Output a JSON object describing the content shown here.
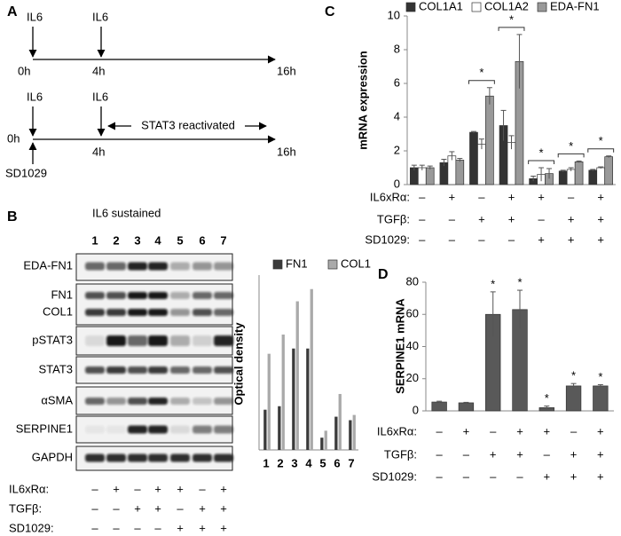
{
  "panel_a": {
    "label": "A",
    "timeline_1": {
      "treatments": [
        "IL6",
        "IL6"
      ],
      "times": [
        "0h",
        "4h",
        "16h"
      ]
    },
    "timeline_2": {
      "treatments": [
        "IL6",
        "IL6"
      ],
      "note": "STAT3 reactivated",
      "inhibitor": "SD1029",
      "times": [
        "0h",
        "4h",
        "16h"
      ]
    }
  },
  "panel_b": {
    "label": "B",
    "title": "IL6 sustained",
    "lanes": [
      "1",
      "2",
      "3",
      "4",
      "5",
      "6",
      "7"
    ],
    "blots": [
      "EDA-FN1",
      "FN1",
      "COL1",
      "pSTAT3",
      "STAT3",
      "αSMA",
      "SERPINE1",
      "GAPDH"
    ],
    "conditions": [
      {
        "label": "IL6xRα:",
        "signs": [
          "–",
          "+",
          "–",
          "+",
          "+",
          "–",
          "+"
        ]
      },
      {
        "label": "TGFβ:",
        "signs": [
          "–",
          "–",
          "+",
          "+",
          "–",
          "+",
          "+"
        ]
      },
      {
        "label": "SD1029:",
        "signs": [
          "–",
          "–",
          "–",
          "–",
          "+",
          "+",
          "+"
        ]
      }
    ]
  },
  "chart_data": [
    {
      "type": "bar",
      "ylabel": "Optical density",
      "categories": [
        "1",
        "2",
        "3",
        "4",
        "5",
        "6",
        "7"
      ],
      "series": [
        {
          "name": "FN1",
          "color": "#3a3a3a",
          "values": [
            23,
            25,
            58,
            58,
            7,
            19,
            17
          ]
        },
        {
          "name": "COL1",
          "color": "#aaaaaa",
          "values": [
            55,
            66,
            85,
            92,
            11,
            32,
            20
          ]
        }
      ],
      "ylim": [
        0,
        100
      ]
    },
    {
      "type": "bar",
      "panel_label": "C",
      "ylabel": "mRNA expression",
      "series": [
        {
          "name": "COL1A1",
          "color": "#333333",
          "values": [
            1.0,
            1.3,
            3.1,
            3.5,
            0.35,
            0.8,
            0.85
          ],
          "errors": [
            0.15,
            0.2,
            0.05,
            0.9,
            0.15,
            0.05,
            0.05
          ]
        },
        {
          "name": "COL1A2",
          "color": "#ffffff",
          "values": [
            1.0,
            1.7,
            2.4,
            2.5,
            0.6,
            0.9,
            1.0
          ],
          "errors": [
            0.15,
            0.25,
            0.3,
            0.4,
            0.4,
            0.1,
            0.05
          ]
        },
        {
          "name": "EDA-FN1",
          "color": "#999999",
          "values": [
            1.0,
            1.45,
            5.25,
            7.3,
            0.65,
            1.35,
            1.65
          ],
          "errors": [
            0.1,
            0.1,
            0.5,
            1.6,
            0.3,
            0.05,
            0.05
          ]
        }
      ],
      "significance": [
        null,
        null,
        "*",
        "*",
        "*",
        "*",
        "*"
      ],
      "ylim": [
        0,
        10
      ],
      "yticks": [
        0,
        2,
        4,
        6,
        8,
        10
      ],
      "conditions": [
        {
          "label": "IL6xRα:",
          "signs": [
            "–",
            "+",
            "–",
            "+",
            "+",
            "–",
            "+"
          ]
        },
        {
          "label": "TGFβ:",
          "signs": [
            "–",
            "–",
            "+",
            "+",
            "–",
            "+",
            "+"
          ]
        },
        {
          "label": "SD1029:",
          "signs": [
            "–",
            "–",
            "–",
            "–",
            "+",
            "+",
            "+"
          ]
        }
      ]
    },
    {
      "type": "bar",
      "panel_label": "D",
      "ylabel": "SERPINE1 mRNA",
      "color": "#595959",
      "values": [
        5.5,
        5,
        60,
        63,
        2,
        15.5,
        15.5
      ],
      "errors": [
        0.5,
        0.3,
        14,
        12,
        1,
        1.5,
        0.8
      ],
      "significance": [
        null,
        null,
        "*",
        "*",
        "*",
        "*",
        "*"
      ],
      "ylim": [
        0,
        80
      ],
      "yticks": [
        0,
        20,
        40,
        60,
        80
      ],
      "conditions": [
        {
          "label": "IL6xRα:",
          "signs": [
            "–",
            "+",
            "–",
            "+",
            "+",
            "–",
            "+"
          ]
        },
        {
          "label": "TGFβ:",
          "signs": [
            "–",
            "–",
            "+",
            "+",
            "–",
            "+",
            "+"
          ]
        },
        {
          "label": "SD1029:",
          "signs": [
            "–",
            "–",
            "–",
            "–",
            "+",
            "+",
            "+"
          ]
        }
      ]
    }
  ]
}
